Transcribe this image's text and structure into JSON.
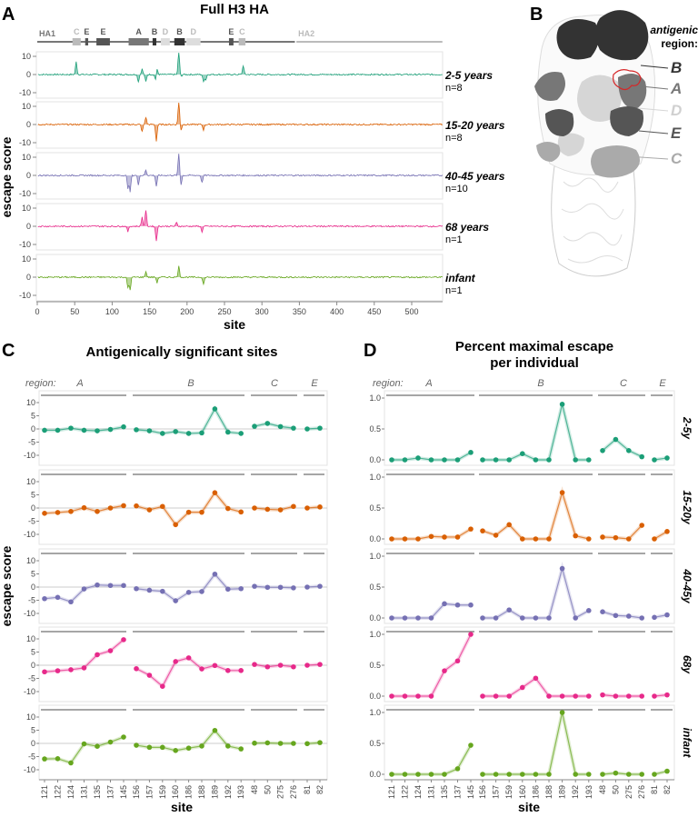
{
  "panel_labels": {
    "a": "A",
    "b": "B",
    "c": "C",
    "d": "D"
  },
  "colors": {
    "2-5": "#1b9e77",
    "15-20": "#d95f02",
    "40-45": "#7570b3",
    "68": "#e7298a",
    "infant": "#66a61e"
  },
  "panel_b": {
    "legend_title_1": "antigenic",
    "legend_title_2": "region:",
    "regions": [
      {
        "label": "B",
        "color": "#333333"
      },
      {
        "label": "A",
        "color": "#777777"
      },
      {
        "label": "D",
        "color": "#d6d6d6"
      },
      {
        "label": "E",
        "color": "#555555"
      },
      {
        "label": "C",
        "color": "#aaaaaa"
      }
    ]
  },
  "chart_data": [
    {
      "id": "panel_a",
      "type": "area",
      "title": "Full H3 HA",
      "xlabel": "site",
      "ylabel": "escape score",
      "xlim": [
        0,
        541
      ],
      "ylim": [
        -12,
        12
      ],
      "xticks": [
        0,
        50,
        100,
        150,
        200,
        250,
        300,
        350,
        400,
        450,
        500
      ],
      "yticks": [
        -10,
        0,
        10
      ],
      "domains": [
        {
          "label": "HA1",
          "start": 0,
          "end": 344
        },
        {
          "label": "HA2",
          "start": 346,
          "end": 541
        }
      ],
      "regions": [
        {
          "label": "C",
          "start": 47,
          "end": 58,
          "shade": "#bbbbbb"
        },
        {
          "label": "E",
          "start": 64,
          "end": 68,
          "shade": "#555555"
        },
        {
          "label": "E",
          "start": 79,
          "end": 97,
          "shade": "#555555"
        },
        {
          "label": "A",
          "start": 122,
          "end": 149,
          "shade": "#777777"
        },
        {
          "label": "B",
          "start": 154,
          "end": 159,
          "shade": "#333333"
        },
        {
          "label": "D",
          "start": 165,
          "end": 177,
          "shade": "#dddddd"
        },
        {
          "label": "B",
          "start": 183,
          "end": 197,
          "shade": "#333333"
        },
        {
          "label": "D",
          "start": 199,
          "end": 218,
          "shade": "#dddddd"
        },
        {
          "label": "E",
          "start": 256,
          "end": 262,
          "shade": "#555555"
        },
        {
          "label": "C",
          "start": 269,
          "end": 278,
          "shade": "#bbbbbb"
        }
      ],
      "series": [
        {
          "key": "2-5",
          "name": "2-5 years",
          "n": "n=8",
          "peaks": [
            [
              52,
              7
            ],
            [
              135,
              -4
            ],
            [
              140,
              3
            ],
            [
              145,
              -4
            ],
            [
              158,
              -3
            ],
            [
              160,
              3
            ],
            [
              189,
              13
            ],
            [
              192,
              -1
            ],
            [
              222,
              -4
            ],
            [
              225,
              -3
            ],
            [
              275,
              5
            ]
          ]
        },
        {
          "key": "15-20",
          "name": "15-20 years",
          "n": "n=8",
          "peaks": [
            [
              140,
              -4
            ],
            [
              145,
              4
            ],
            [
              159,
              -9
            ],
            [
              189,
              13
            ],
            [
              192,
              -3
            ],
            [
              222,
              -3
            ]
          ]
        },
        {
          "key": "40-45",
          "name": "40-45 years",
          "n": "n=10",
          "peaks": [
            [
              121,
              -7
            ],
            [
              124,
              -9
            ],
            [
              135,
              -5
            ],
            [
              145,
              3
            ],
            [
              159,
              -6
            ],
            [
              189,
              12
            ],
            [
              192,
              -5
            ],
            [
              220,
              -4
            ]
          ]
        },
        {
          "key": "68",
          "name": "68 years",
          "n": "n=1",
          "peaks": [
            [
              121,
              -3
            ],
            [
              140,
              5
            ],
            [
              145,
              9
            ],
            [
              159,
              -8
            ],
            [
              186,
              2
            ],
            [
              220,
              -3
            ]
          ]
        },
        {
          "key": "infant",
          "name": "infant",
          "n": "n=1",
          "peaks": [
            [
              121,
              -6
            ],
            [
              124,
              -7
            ],
            [
              145,
              3
            ],
            [
              160,
              -3
            ],
            [
              189,
              6
            ],
            [
              222,
              -4
            ]
          ]
        }
      ]
    },
    {
      "id": "panel_c",
      "type": "line",
      "title": "Antigenically significant sites",
      "xlabel": "site",
      "ylabel": "escape score",
      "region_label": "region:",
      "ylim": [
        -14,
        14
      ],
      "yticks": [
        10,
        5,
        0,
        -5,
        -10
      ],
      "regions": [
        {
          "label": "A",
          "sites": [
            "121",
            "122",
            "124",
            "131",
            "135",
            "137",
            "145"
          ]
        },
        {
          "label": "B",
          "sites": [
            "156",
            "157",
            "159",
            "160",
            "186",
            "188",
            "189",
            "192",
            "193"
          ]
        },
        {
          "label": "C",
          "sites": [
            "48",
            "50",
            "275",
            "276"
          ]
        },
        {
          "label": "E",
          "sites": [
            "81",
            "82"
          ]
        }
      ],
      "series": [
        {
          "key": "2-5",
          "values": [
            -0.5,
            -0.5,
            0.3,
            -0.5,
            -0.7,
            -0.2,
            0.8,
            -0.3,
            -0.7,
            -1.7,
            -1.0,
            -1.7,
            -1.5,
            7.6,
            -1.2,
            -1.7,
            1.0,
            2.1,
            0.9,
            0.3,
            0.0,
            0.3
          ]
        },
        {
          "key": "15-20",
          "values": [
            -2.0,
            -1.7,
            -1.3,
            0.1,
            -1.3,
            0.0,
            0.9,
            0.8,
            -0.7,
            0.6,
            -6.3,
            -1.6,
            -1.6,
            5.8,
            -0.2,
            -1.5,
            0.0,
            -0.5,
            -0.7,
            0.6,
            0.0,
            0.4
          ]
        },
        {
          "key": "40-45",
          "values": [
            -4.4,
            -3.9,
            -5.6,
            -0.7,
            0.8,
            0.6,
            0.6,
            -0.6,
            -1.2,
            -1.6,
            -5.2,
            -2.0,
            -1.7,
            4.9,
            -0.8,
            -0.6,
            0.3,
            -0.1,
            -0.1,
            -0.3,
            0.0,
            0.3
          ]
        },
        {
          "key": "68",
          "values": [
            -2.5,
            -2.1,
            -1.7,
            -1.0,
            4.0,
            5.5,
            9.7,
            -1.3,
            -3.8,
            -8.0,
            1.4,
            2.8,
            -1.4,
            -0.1,
            -2.0,
            -2.0,
            0.3,
            -0.6,
            0.0,
            -0.6,
            0.0,
            0.3
          ]
        },
        {
          "key": "infant",
          "values": [
            -5.9,
            -5.8,
            -7.4,
            -0.2,
            -1.1,
            0.5,
            2.4,
            -0.7,
            -1.5,
            -1.5,
            -2.7,
            -1.8,
            -1.0,
            4.9,
            -1.0,
            -2.1,
            0.1,
            0.2,
            0.0,
            0.0,
            -0.1,
            0.3
          ]
        }
      ]
    },
    {
      "id": "panel_d",
      "type": "line",
      "title_1": "Percent maximal escape",
      "title_2": "per individual",
      "xlabel": "site",
      "region_label": "region:",
      "ylim": [
        0,
        1.05
      ],
      "yticks": [
        "1.0",
        "0.5",
        "0.0"
      ],
      "row_labels": [
        "2-5y",
        "15-20y",
        "40-45y",
        "68y",
        "infant"
      ],
      "series": [
        {
          "key": "2-5",
          "values": [
            0,
            0,
            0.03,
            0,
            0,
            0,
            0.12,
            0,
            0,
            0,
            0.1,
            0,
            0,
            0.9,
            0,
            0,
            0.15,
            0.33,
            0.15,
            0.05,
            0,
            0.03
          ]
        },
        {
          "key": "15-20",
          "values": [
            0,
            0,
            0,
            0.04,
            0.03,
            0.03,
            0.16,
            0.13,
            0.06,
            0.23,
            0,
            0,
            0,
            0.75,
            0.05,
            0,
            0.03,
            0.02,
            0,
            0.22,
            0,
            0.12
          ]
        },
        {
          "key": "40-45",
          "values": [
            0,
            0,
            0,
            0,
            0.23,
            0.21,
            0.21,
            0,
            0,
            0.13,
            0,
            0,
            0,
            0.8,
            0,
            0.12,
            0.1,
            0.04,
            0.03,
            0,
            0.01,
            0.05
          ]
        },
        {
          "key": "68",
          "values": [
            0,
            0,
            0,
            0,
            0.41,
            0.57,
            1.0,
            0,
            0,
            0,
            0.14,
            0.29,
            0,
            0,
            0,
            0,
            0.02,
            0,
            0,
            0,
            0,
            0.02
          ]
        },
        {
          "key": "infant",
          "values": [
            0,
            0,
            0,
            0,
            0,
            0.09,
            0.47,
            0,
            0,
            0,
            0,
            0,
            0,
            1.0,
            0,
            0,
            0,
            0.02,
            0,
            0,
            0,
            0.05
          ]
        }
      ]
    }
  ]
}
